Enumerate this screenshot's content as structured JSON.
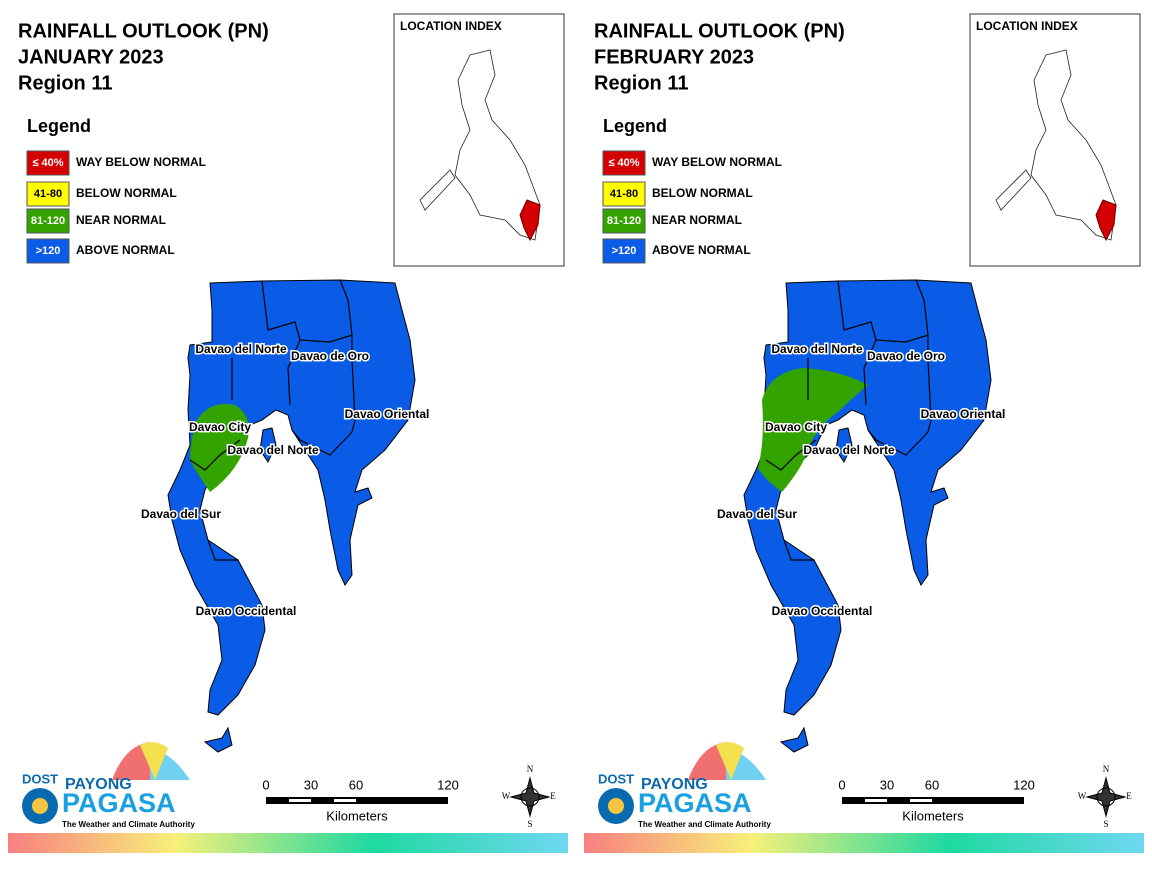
{
  "panels": [
    {
      "title": [
        "RAINFALL OUTLOOK (PN)",
        "JANUARY 2023",
        "Region 11"
      ],
      "legend": {
        "title": "Legend",
        "items": [
          {
            "swatch": "≤ 40%",
            "label": "WAY BELOW NORMAL",
            "color": "#d40000"
          },
          {
            "swatch": "41-80",
            "label": "BELOW NORMAL",
            "color": "#ffff00"
          },
          {
            "swatch": "81-120",
            "label": "NEAR NORMAL",
            "color": "#33a300"
          },
          {
            "swatch": ">120",
            "label": "ABOVE NORMAL",
            "color": "#0a5ce6"
          }
        ]
      },
      "location_index": "LOCATION INDEX",
      "places": [
        "Davao del Norte",
        "Davao de Oro",
        "Davao Oriental",
        "Davao City",
        "Davao del Norte",
        "Davao del Sur",
        "Davao Occidental"
      ],
      "scale": {
        "ticks": [
          "0",
          "30",
          "60",
          "120"
        ],
        "unit": "Kilometers"
      },
      "compass": [
        "N",
        "E",
        "S",
        "W"
      ],
      "logo": [
        "DOST",
        "PAYONG",
        "PAGASA",
        "The Weather and Climate Authority"
      ]
    },
    {
      "title": [
        "RAINFALL OUTLOOK (PN)",
        "FEBRUARY 2023",
        "Region 11"
      ],
      "legend": {
        "title": "Legend",
        "items": [
          {
            "swatch": "≤ 40%",
            "label": "WAY BELOW NORMAL",
            "color": "#d40000"
          },
          {
            "swatch": "41-80",
            "label": "BELOW NORMAL",
            "color": "#ffff00"
          },
          {
            "swatch": "81-120",
            "label": "NEAR NORMAL",
            "color": "#33a300"
          },
          {
            "swatch": ">120",
            "label": "ABOVE NORMAL",
            "color": "#0a5ce6"
          }
        ]
      },
      "location_index": "LOCATION INDEX",
      "places": [
        "Davao del Norte",
        "Davao de Oro",
        "Davao Oriental",
        "Davao City",
        "Davao del Norte",
        "Davao del Sur",
        "Davao Occidental"
      ],
      "scale": {
        "ticks": [
          "0",
          "30",
          "60",
          "120"
        ],
        "unit": "Kilometers"
      },
      "compass": [
        "N",
        "E",
        "S",
        "W"
      ],
      "logo": [
        "DOST",
        "PAYONG",
        "PAGASA",
        "The Weather and Climate Authority"
      ]
    }
  ]
}
